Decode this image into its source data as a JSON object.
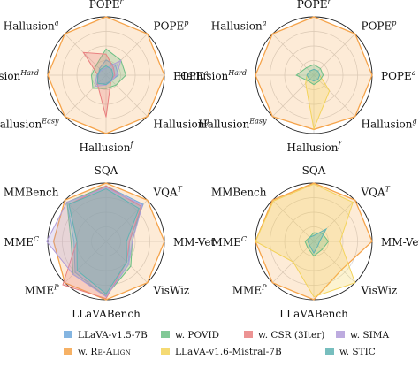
{
  "chart_data": [
    {
      "type": "radar",
      "axes": [
        {
          "base": "POPE",
          "sup": "r"
        },
        {
          "base": "POPE",
          "sup": "p"
        },
        {
          "base": "POPE",
          "sup": "a"
        },
        {
          "base": "Hallusion",
          "sup": "g"
        },
        {
          "base": "Hallusion",
          "sup": "f"
        },
        {
          "base": "Hallusion",
          "sup": "Easy"
        },
        {
          "base": "Hallusion",
          "sup": "Hard"
        },
        {
          "base": "Hallusion",
          "sup": "a"
        }
      ],
      "rlim": [
        0,
        1
      ],
      "grid": true,
      "series": [
        {
          "name": "w. Re-Align",
          "values": [
            1,
            1,
            1,
            1,
            1,
            1,
            1,
            1
          ]
        },
        {
          "name": "LLaVA-v1.5-7B",
          "values": [
            0.26,
            0.23,
            0.21,
            0.13,
            0.14,
            0.22,
            0.13,
            0.16
          ]
        },
        {
          "name": "w. POVID",
          "values": [
            0.45,
            0.36,
            0.34,
            0.24,
            0.23,
            0.32,
            0.25,
            0.24
          ]
        },
        {
          "name": "w. CSR (3Iter)",
          "values": [
            0.36,
            0.18,
            0.15,
            0.12,
            0.72,
            0.21,
            0.14,
            0.55
          ]
        },
        {
          "name": "w. SIMA",
          "values": [
            0.12,
            0.36,
            0.18,
            0.14,
            0.17,
            0.27,
            0.16,
            0.12
          ]
        },
        {
          "name": "w. STIC",
          "values": [
            0.16,
            0.14,
            0.12,
            0.13,
            0.16,
            0.2,
            0.15,
            0.14
          ]
        }
      ]
    },
    {
      "type": "radar",
      "axes": [
        {
          "base": "POPE",
          "sup": "r"
        },
        {
          "base": "POPE",
          "sup": "p"
        },
        {
          "base": "POPE",
          "sup": "a"
        },
        {
          "base": "Hallusion",
          "sup": "g"
        },
        {
          "base": "Hallusion",
          "sup": "f"
        },
        {
          "base": "Hallusion",
          "sup": "Easy"
        },
        {
          "base": "Hallusion",
          "sup": "Hard"
        },
        {
          "base": "Hallusion",
          "sup": "a"
        }
      ],
      "rlim": [
        0,
        1
      ],
      "grid": true,
      "series": [
        {
          "name": "w. Re-Align",
          "values": [
            1,
            1,
            1,
            1,
            0.93,
            1,
            1,
            1
          ]
        },
        {
          "name": "LLaVA-v1.6-Mistral-7B",
          "values": [
            0.1,
            0.1,
            0.1,
            0.38,
            0.92,
            0.2,
            0.12,
            0.1
          ]
        },
        {
          "name": "w. POVID",
          "values": [
            0.18,
            0.16,
            0.16,
            0.14,
            0.16,
            0.14,
            0.3,
            0.18
          ]
        },
        {
          "name": "w. STIC",
          "values": [
            0.1,
            0.1,
            0.1,
            0.1,
            0.1,
            0.1,
            0.12,
            0.1
          ]
        }
      ]
    },
    {
      "type": "radar",
      "axes": [
        {
          "base": "SQA",
          "sup": ""
        },
        {
          "base": "VQA",
          "sup": "T"
        },
        {
          "base": "MM-Vet",
          "sup": ""
        },
        {
          "base": "VisWiz",
          "sup": ""
        },
        {
          "base": "LLaVABench",
          "sup": ""
        },
        {
          "base": "MME",
          "sup": "P"
        },
        {
          "base": "MME",
          "sup": "C"
        },
        {
          "base": "MMBench",
          "sup": ""
        }
      ],
      "rlim": [
        0,
        1
      ],
      "grid": true,
      "series": [
        {
          "name": "w. Re-Align",
          "values": [
            1,
            1,
            1,
            1,
            1,
            1,
            0.9,
            1
          ]
        },
        {
          "name": "LLaVA-v1.5-7B",
          "values": [
            0.95,
            0.9,
            0.4,
            0.55,
            0.95,
            0.75,
            0.55,
            0.95
          ]
        },
        {
          "name": "w. POVID",
          "values": [
            0.95,
            0.85,
            0.45,
            0.6,
            0.93,
            0.8,
            0.6,
            0.95
          ]
        },
        {
          "name": "w. CSR (3Iter)",
          "values": [
            0.95,
            0.85,
            0.4,
            0.5,
            0.98,
            1.05,
            0.5,
            0.9
          ]
        },
        {
          "name": "w. SIMA",
          "values": [
            0.92,
            0.88,
            0.45,
            0.55,
            0.95,
            0.8,
            1.02,
            0.95
          ]
        },
        {
          "name": "w. STIC",
          "values": [
            0.9,
            0.8,
            0.35,
            0.5,
            0.9,
            0.7,
            0.5,
            0.9
          ]
        }
      ]
    },
    {
      "type": "radar",
      "axes": [
        {
          "base": "SQA",
          "sup": ""
        },
        {
          "base": "VQA",
          "sup": "T"
        },
        {
          "base": "MM-Vet",
          "sup": ""
        },
        {
          "base": "VisWiz",
          "sup": ""
        },
        {
          "base": "LLaVABench",
          "sup": ""
        },
        {
          "base": "MME",
          "sup": "P"
        },
        {
          "base": "MME",
          "sup": "C"
        },
        {
          "base": "MMBench",
          "sup": ""
        }
      ],
      "rlim": [
        0,
        1
      ],
      "grid": true,
      "series": [
        {
          "name": "w. Re-Align",
          "values": [
            1,
            1,
            1,
            0.68,
            1,
            1,
            1,
            1
          ]
        },
        {
          "name": "LLaVA-v1.6-Mistral-7B",
          "values": [
            0.98,
            0.95,
            0.45,
            1.0,
            0.95,
            0.5,
            1.0,
            0.98
          ]
        },
        {
          "name": "w. POVID",
          "values": [
            0.15,
            0.2,
            0.25,
            0.2,
            0.25,
            0.15,
            0.15,
            0.1
          ]
        },
        {
          "name": "w. STIC",
          "values": [
            0.1,
            0.3,
            0.1,
            0.1,
            0.2,
            0.1,
            0.1,
            0.1
          ]
        }
      ]
    }
  ],
  "legend": {
    "position": "bottom",
    "entries": [
      {
        "name": "LLaVA-v1.5-7B",
        "color": "#6fa8dc"
      },
      {
        "name": "w. POVID",
        "color": "#6bbf84"
      },
      {
        "name": "w. CSR (3Iter)",
        "color": "#e98080"
      },
      {
        "name": "w. SIMA",
        "color": "#b19cd9"
      },
      {
        "name": "w. Re-Align",
        "color": "#f5a34a",
        "smallcaps": true,
        "prefix": "w. ",
        "sc": "Re-Align"
      },
      {
        "name": "LLaVA-v1.6-Mistral-7B",
        "color": "#f3d35a"
      },
      {
        "name": "w. STIC",
        "color": "#5fb3b3"
      }
    ]
  },
  "colors": {
    "w. Re-Align": "#f5a34a",
    "LLaVA-v1.5-7B": "#6fa8dc",
    "w. POVID": "#6bbf84",
    "w. CSR (3Iter)": "#e98080",
    "w. SIMA": "#b19cd9",
    "w. STIC": "#5fb3b3",
    "LLaVA-v1.6-Mistral-7B": "#f3d35a"
  }
}
